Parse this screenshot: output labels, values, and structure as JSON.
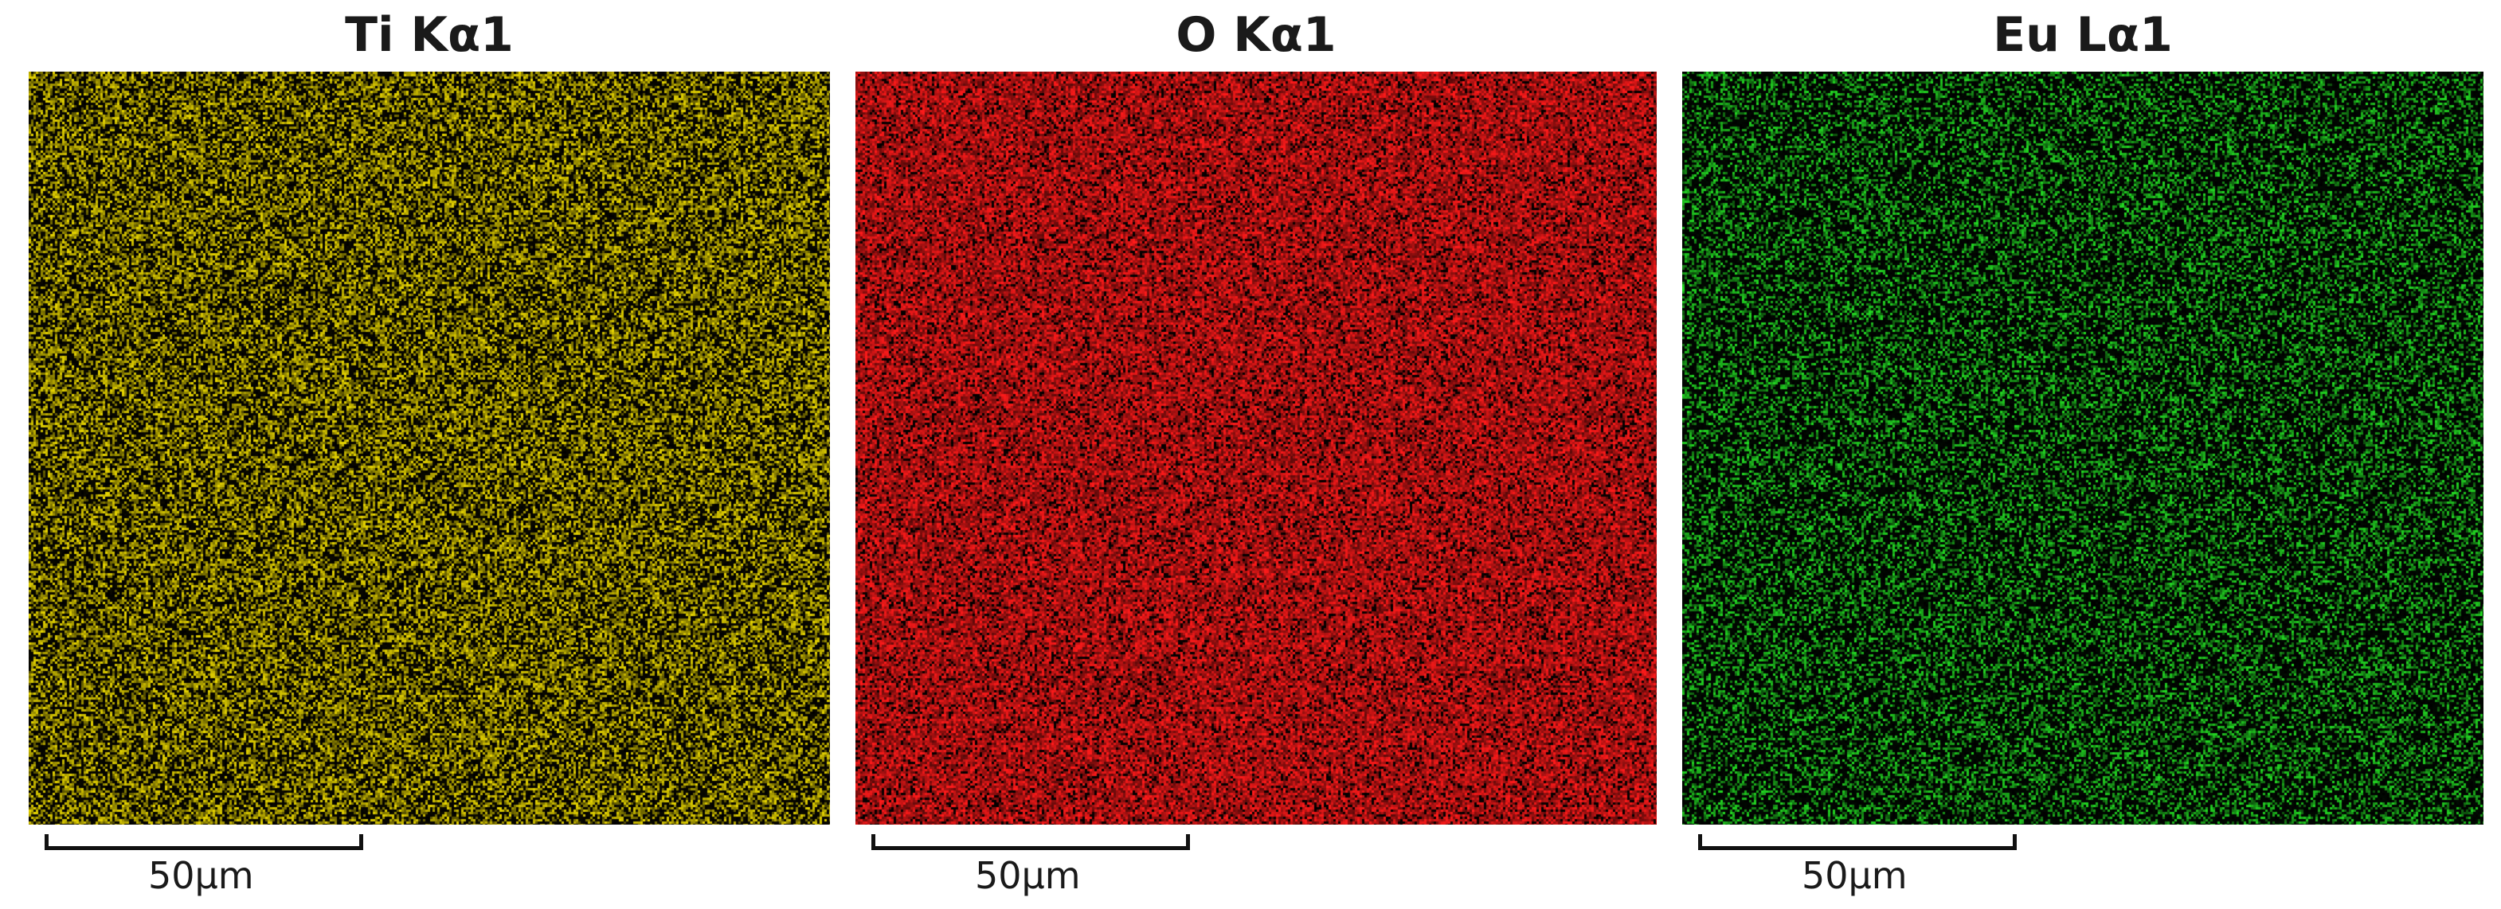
{
  "panels": [
    {
      "title": "Ti Kα1",
      "color": "#e6d400",
      "scale_label": "50μm",
      "density": 0.55
    },
    {
      "title": "O Kα1",
      "color": "#ff1a1a",
      "scale_label": "50μm",
      "density": 0.85
    },
    {
      "title": "Eu Lα1",
      "color": "#22d822",
      "scale_label": "50μm",
      "density": 0.4
    }
  ]
}
